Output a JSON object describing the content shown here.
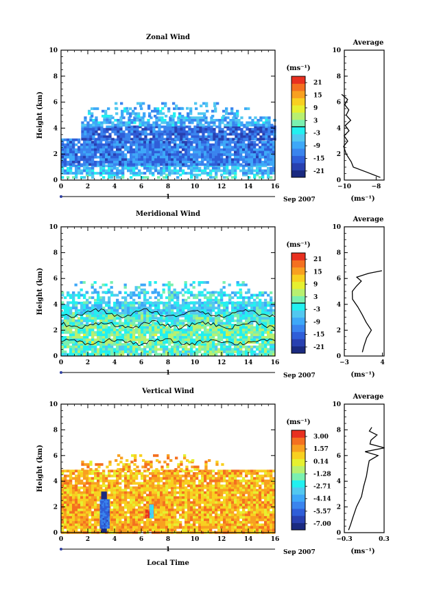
{
  "figure": {
    "main_xlabel": "Local Time",
    "date_label": "Sep 2007",
    "day_label": "1",
    "unit_label": "(ms⁻¹)"
  },
  "colorbar": {
    "colors": [
      "#1a2a80",
      "#2840b0",
      "#2f5ed8",
      "#3a84ee",
      "#3ea8f8",
      "#52c8f0",
      "#22f0f0",
      "#7af0b0",
      "#b8f070",
      "#e6f030",
      "#f8d020",
      "#f8a020",
      "#f47020",
      "#e83020"
    ]
  },
  "chart_data": [
    {
      "type": "heatmap",
      "title": "Zonal Wind",
      "ylabel": "Height (km)",
      "xlim": [
        0,
        16
      ],
      "ylim": [
        0,
        10
      ],
      "x_ticks": [
        0,
        2,
        4,
        6,
        8,
        10,
        12,
        14,
        16
      ],
      "y_ticks": [
        0,
        2,
        4,
        6,
        8,
        10
      ],
      "colorbar_labels": [
        "21",
        "15",
        "9",
        "3",
        "-3",
        "-9",
        "-15",
        "-21"
      ],
      "colorbar_range": [
        -21,
        21
      ],
      "zero_contour": false,
      "regions": [
        {
          "x0": 0,
          "x1": 16,
          "y0": 0.2,
          "y1": 0.5,
          "value": -2,
          "density": 0.45
        },
        {
          "x0": 0,
          "x1": 16,
          "y0": 0.5,
          "y1": 1.2,
          "value": -6,
          "density": 0.8
        },
        {
          "x0": 0,
          "x1": 16,
          "y0": 1.2,
          "y1": 3.2,
          "value": -11,
          "density": 0.93
        },
        {
          "x0": 1.5,
          "x1": 16,
          "y0": 3.2,
          "y1": 4.2,
          "value": -13,
          "density": 0.9
        },
        {
          "x0": 1.5,
          "x1": 16,
          "y0": 4.2,
          "y1": 4.9,
          "value": -7,
          "density": 0.75
        },
        {
          "x0": 2,
          "x1": 14,
          "y0": 4.9,
          "y1": 5.6,
          "value": -6,
          "density": 0.35
        },
        {
          "x0": 4,
          "x1": 12,
          "y0": 5.6,
          "y1": 6.0,
          "value": -7,
          "density": 0.2
        }
      ],
      "average": {
        "title": "Average",
        "xlabel": "(ms⁻¹)",
        "xlim": [
          -10,
          -7.5
        ],
        "x_ticks": [
          -10,
          -8
        ],
        "x_tick_labels": [
          "−10",
          "−8"
        ],
        "y_ticks": [
          0,
          2,
          4,
          6,
          8,
          10
        ],
        "profile": [
          {
            "z": 0.2,
            "v": -7.7
          },
          {
            "z": 0.6,
            "v": -8.6
          },
          {
            "z": 1.0,
            "v": -9.4
          },
          {
            "z": 1.4,
            "v": -9.6
          },
          {
            "z": 2.0,
            "v": -9.9
          },
          {
            "z": 2.6,
            "v": -10.0
          },
          {
            "z": 3.0,
            "v": -9.8
          },
          {
            "z": 3.4,
            "v": -10.0
          },
          {
            "z": 3.8,
            "v": -9.7
          },
          {
            "z": 4.2,
            "v": -9.9
          },
          {
            "z": 4.6,
            "v": -9.6
          },
          {
            "z": 5.0,
            "v": -9.9
          },
          {
            "z": 5.4,
            "v": -9.7
          },
          {
            "z": 5.8,
            "v": -10.0
          },
          {
            "z": 6.2,
            "v": -9.8
          },
          {
            "z": 6.6,
            "v": -10.2
          }
        ]
      }
    },
    {
      "type": "heatmap",
      "title": "Meridional Wind",
      "ylabel": "Height (km)",
      "xlim": [
        0,
        16
      ],
      "ylim": [
        0,
        10
      ],
      "x_ticks": [
        0,
        2,
        4,
        6,
        8,
        10,
        12,
        14,
        16
      ],
      "y_ticks": [
        0,
        2,
        4,
        6,
        8,
        10
      ],
      "colorbar_labels": [
        "21",
        "15",
        "9",
        "3",
        "-3",
        "-9",
        "-15",
        "-21"
      ],
      "colorbar_range": [
        -21,
        21
      ],
      "zero_contour": true,
      "regions": [
        {
          "x0": 0,
          "x1": 16,
          "y0": 0.2,
          "y1": 1.0,
          "value": 0.5,
          "density": 0.9
        },
        {
          "x0": 0,
          "x1": 16,
          "y0": 1.0,
          "y1": 2.5,
          "value": 1.5,
          "density": 0.93
        },
        {
          "x0": 0,
          "x1": 16,
          "y0": 2.5,
          "y1": 3.4,
          "value": -0.5,
          "density": 0.9
        },
        {
          "x0": 0,
          "x1": 16,
          "y0": 3.4,
          "y1": 4.2,
          "value": -4,
          "density": 0.85
        },
        {
          "x0": 0,
          "x1": 16,
          "y0": 4.2,
          "y1": 5.0,
          "value": -3,
          "density": 0.55
        },
        {
          "x0": 1,
          "x1": 14,
          "y0": 5.0,
          "y1": 5.8,
          "value": -3,
          "density": 0.25
        }
      ],
      "average": {
        "title": "Average",
        "xlabel": "(ms⁻¹)",
        "xlim": [
          -3,
          4.3
        ],
        "x_ticks": [
          -3,
          4
        ],
        "x_tick_labels": [
          "−3",
          "4"
        ],
        "y_ticks": [
          0,
          2,
          4,
          6,
          8,
          10
        ],
        "profile": [
          {
            "z": 0.3,
            "v": 0.2
          },
          {
            "z": 0.8,
            "v": 0.6
          },
          {
            "z": 1.4,
            "v": 1.2
          },
          {
            "z": 2.0,
            "v": 2.0
          },
          {
            "z": 2.6,
            "v": 1.0
          },
          {
            "z": 3.2,
            "v": 0.2
          },
          {
            "z": 3.8,
            "v": -0.6
          },
          {
            "z": 4.4,
            "v": -1.4
          },
          {
            "z": 5.0,
            "v": -1.6
          },
          {
            "z": 5.4,
            "v": -0.8
          },
          {
            "z": 5.8,
            "v": 0.0
          },
          {
            "z": 6.1,
            "v": -0.6
          },
          {
            "z": 6.4,
            "v": 1.5
          },
          {
            "z": 6.6,
            "v": 4.0
          }
        ]
      }
    },
    {
      "type": "heatmap",
      "title": "Vertical Wind",
      "ylabel": "Height (km)",
      "xlim": [
        0,
        16
      ],
      "ylim": [
        0,
        10
      ],
      "x_ticks": [
        0,
        2,
        4,
        6,
        8,
        10,
        12,
        14,
        16
      ],
      "y_ticks": [
        0,
        2,
        4,
        6,
        8,
        10
      ],
      "colorbar_labels": [
        "3.00",
        "1.57",
        "0.14",
        "-1.28",
        "-2.71",
        "-4.14",
        "-5.57",
        "-7.00"
      ],
      "colorbar_range": [
        -7,
        3
      ],
      "zero_contour": false,
      "regions": [
        {
          "x0": 0,
          "x1": 16,
          "y0": 0,
          "y1": 0.5,
          "value": 0.9,
          "density": 0.95
        },
        {
          "x0": 0,
          "x1": 16,
          "y0": 0.5,
          "y1": 3.6,
          "value": 0.9,
          "density": 0.95
        },
        {
          "x0": 0,
          "x1": 16,
          "y0": 3.6,
          "y1": 4.9,
          "value": 0.9,
          "density": 0.85
        },
        {
          "x0": 1.5,
          "x1": 12,
          "y0": 4.9,
          "y1": 5.6,
          "value": 0.9,
          "density": 0.35
        },
        {
          "x0": 4,
          "x1": 11,
          "y0": 5.6,
          "y1": 6.1,
          "value": 0.9,
          "density": 0.2
        }
      ],
      "features": [
        {
          "x0": 3.0,
          "x1": 3.4,
          "y0": 0.1,
          "y1": 3.2,
          "value": -7.0
        },
        {
          "x0": 2.9,
          "x1": 3.6,
          "y0": 0.4,
          "y1": 2.6,
          "value": -5.0
        },
        {
          "x0": 6.6,
          "x1": 6.9,
          "y0": 1.2,
          "y1": 2.2,
          "value": -3.0
        },
        {
          "x0": 6.3,
          "x1": 6.55,
          "y0": 1.2,
          "y1": 1.8,
          "value": 2.6
        }
      ],
      "average": {
        "title": "Average",
        "xlabel": "(ms⁻¹)",
        "xlim": [
          -0.3,
          0.3
        ],
        "x_ticks": [
          -0.3,
          0.3
        ],
        "x_tick_labels": [
          "−0.3",
          "0.3"
        ],
        "y_ticks": [
          0,
          2,
          4,
          6,
          8,
          10
        ],
        "profile": [
          {
            "z": 0.2,
            "v": -0.23
          },
          {
            "z": 0.6,
            "v": -0.2
          },
          {
            "z": 1.2,
            "v": -0.18
          },
          {
            "z": 2.0,
            "v": -0.12
          },
          {
            "z": 2.8,
            "v": -0.05
          },
          {
            "z": 3.6,
            "v": 0.0
          },
          {
            "z": 4.4,
            "v": 0.04
          },
          {
            "z": 5.0,
            "v": 0.05
          },
          {
            "z": 5.6,
            "v": 0.07
          },
          {
            "z": 6.0,
            "v": 0.2
          },
          {
            "z": 6.3,
            "v": 0.02
          },
          {
            "z": 6.6,
            "v": 0.3
          },
          {
            "z": 6.9,
            "v": 0.08
          },
          {
            "z": 7.2,
            "v": 0.1
          },
          {
            "z": 7.6,
            "v": 0.2
          },
          {
            "z": 7.9,
            "v": 0.08
          },
          {
            "z": 8.2,
            "v": 0.12
          }
        ]
      }
    }
  ]
}
